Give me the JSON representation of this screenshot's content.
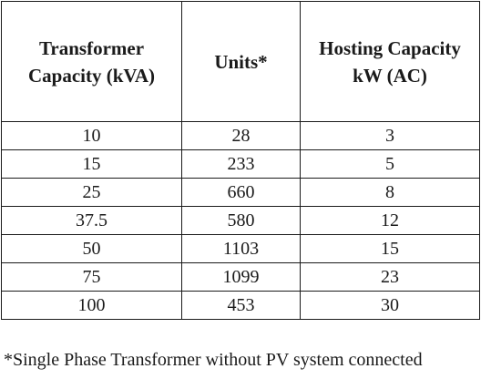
{
  "table": {
    "headers": [
      {
        "line1": "Transformer",
        "line2": "Capacity (kVA)"
      },
      {
        "line1": "Units*",
        "line2": ""
      },
      {
        "line1": "Hosting Capacity",
        "line2": "kW (AC)"
      }
    ],
    "rows": [
      [
        "10",
        "28",
        "3"
      ],
      [
        "15",
        "233",
        "5"
      ],
      [
        "25",
        "660",
        "8"
      ],
      [
        "37.5",
        "580",
        "12"
      ],
      [
        "50",
        "1103",
        "15"
      ],
      [
        "75",
        "1099",
        "23"
      ],
      [
        "100",
        "453",
        "30"
      ]
    ]
  },
  "footnote": "*Single Phase Transformer without PV system connected"
}
